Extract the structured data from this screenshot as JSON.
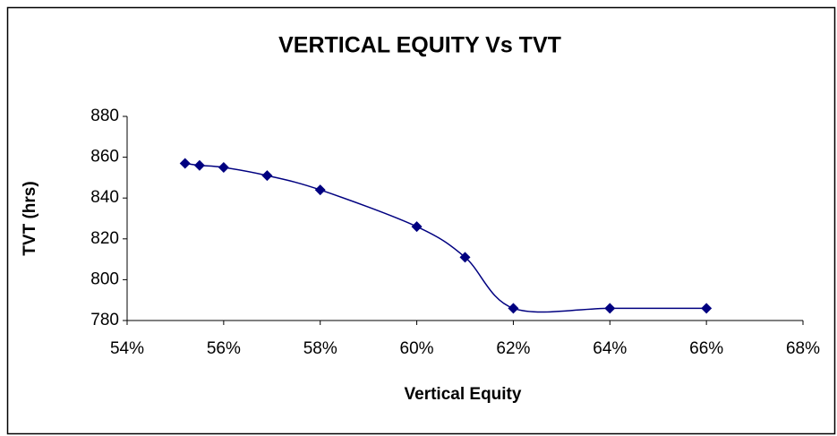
{
  "chart_data": {
    "type": "line",
    "title": "VERTICAL EQUITY Vs TVT",
    "x_label": "Vertical Equity",
    "y_label": "TVT (hrs)",
    "x": [
      55.2,
      55.5,
      56,
      56.9,
      58,
      60,
      61,
      62,
      64,
      66
    ],
    "series": [
      {
        "name": "TVT",
        "color": "#000080",
        "values": [
          857,
          856,
          855,
          851,
          844,
          826,
          811,
          786,
          786,
          786
        ]
      }
    ],
    "xlim": [
      54,
      68
    ],
    "xticks": [
      {
        "value": 54,
        "label": "54%"
      },
      {
        "value": 56,
        "label": "56%"
      },
      {
        "value": 58,
        "label": "58%"
      },
      {
        "value": 60,
        "label": "60%"
      },
      {
        "value": 62,
        "label": "62%"
      },
      {
        "value": 64,
        "label": "64%"
      },
      {
        "value": 66,
        "label": "66%"
      },
      {
        "value": 68,
        "label": "68%"
      }
    ],
    "ylim": [
      780,
      880
    ],
    "yticks": [
      780,
      800,
      820,
      840,
      860,
      880
    ],
    "grid": false,
    "smooth": true
  }
}
